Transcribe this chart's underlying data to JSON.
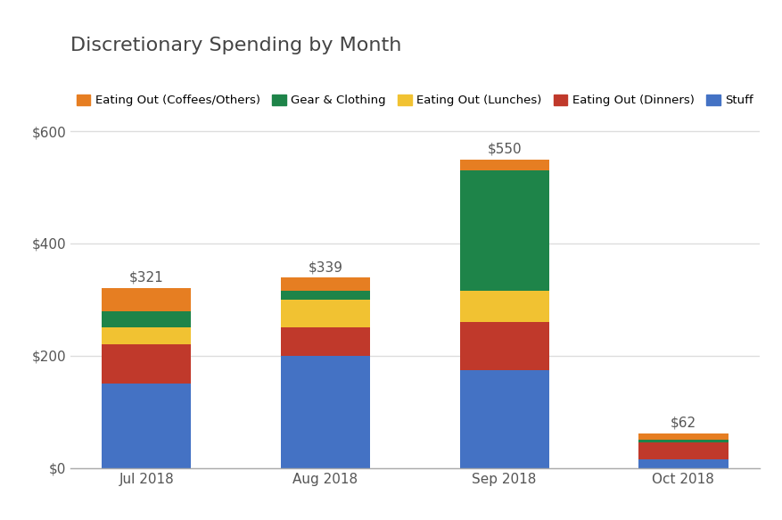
{
  "title": "Discretionary Spending by Month",
  "categories": [
    "Jul 2018",
    "Aug 2018",
    "Sep 2018",
    "Oct 2018"
  ],
  "series": [
    {
      "name": "Stuff",
      "color": "#4472C4",
      "values": [
        150,
        200,
        175,
        15
      ]
    },
    {
      "name": "Eating Out (Dinners)",
      "color": "#C0392B",
      "values": [
        70,
        50,
        85,
        30
      ]
    },
    {
      "name": "Eating Out (Lunches)",
      "color": "#F1C232",
      "values": [
        30,
        50,
        55,
        0
      ]
    },
    {
      "name": "Gear & Clothing",
      "color": "#1E8449",
      "values": [
        30,
        15,
        215,
        5
      ]
    },
    {
      "name": "Eating Out (Coffees/Others)",
      "color": "#E67E22",
      "values": [
        41,
        24,
        20,
        12
      ]
    }
  ],
  "totals": [
    321,
    339,
    550,
    62
  ],
  "ylim": [
    0,
    630
  ],
  "yticks": [
    0,
    200,
    400,
    600
  ],
  "ytick_labels": [
    "$0",
    "$200",
    "$400",
    "$600"
  ],
  "background_color": "#ffffff",
  "grid_color": "#dddddd",
  "title_color": "#444444",
  "legend_order": [
    "Eating Out (Coffees/Others)",
    "Gear & Clothing",
    "Eating Out (Lunches)",
    "Eating Out (Dinners)",
    "Stuff"
  ],
  "bar_width": 0.5,
  "annotation_color": "#555555",
  "annotation_fontsize": 11
}
